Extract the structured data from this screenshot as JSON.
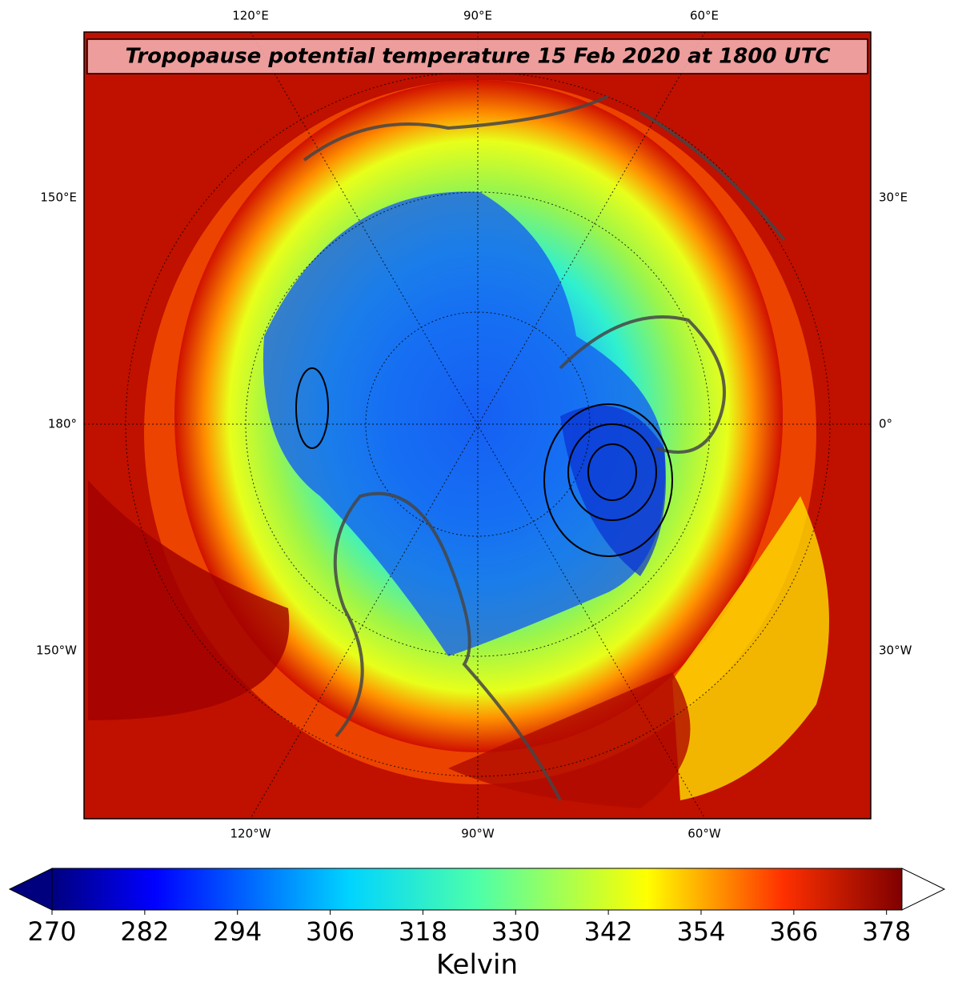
{
  "title": "Tropopause potential temperature 15 Feb 2020 at 1800 UTC",
  "longitude_labels": {
    "top": [
      "120°E",
      "90°E",
      "60°E"
    ],
    "bottom": [
      "120°W",
      "90°W",
      "60°W"
    ],
    "left": [
      "150°E",
      "180°",
      "150°W"
    ],
    "right": [
      "30°E",
      "0°",
      "30°W"
    ]
  },
  "colorbar": {
    "label": "Kelvin",
    "lim": [
      270,
      380
    ],
    "ticks": [
      270,
      282,
      294,
      306,
      318,
      330,
      342,
      354,
      366,
      378
    ]
  }
}
